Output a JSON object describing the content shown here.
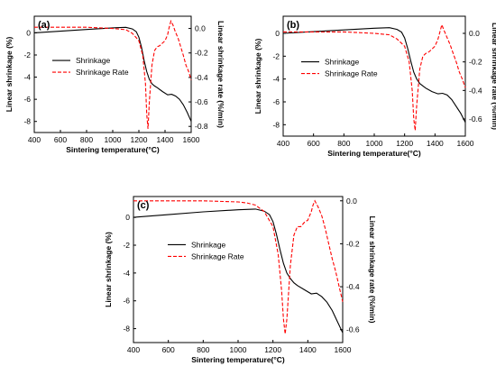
{
  "colors": {
    "shrinkage": "#000000",
    "shrinkage_rate": "#ff0000"
  },
  "chart_data": [
    {
      "panel_label": "(a)",
      "type": "line",
      "xlabel": "Sintering temperature(°C)",
      "ylabel_left": "Linear shrinkage (%)",
      "ylabel_right": "Linear shrinkage rate (%/min)",
      "xlim": [
        400,
        1600
      ],
      "ylim_left": [
        -9,
        1.5
      ],
      "ylim_right": [
        -0.85,
        0.1
      ],
      "xticks": [
        "400",
        "600",
        "800",
        "1000",
        "1200",
        "1400",
        "1600"
      ],
      "yticks_left": [
        "0",
        "-2",
        "-4",
        "-6",
        "-8"
      ],
      "yticks_right": [
        "0.0",
        "-0.2",
        "-0.4",
        "-0.6",
        "-0.8"
      ],
      "legend": {
        "placement": "center-left",
        "entries": [
          "Shrinkage",
          "Shrinkage Rate"
        ]
      },
      "series": [
        {
          "name": "Shrinkage",
          "axis": "left",
          "style": "solid",
          "x": [
            400,
            600,
            800,
            1000,
            1100,
            1150,
            1180,
            1200,
            1220,
            1240,
            1260,
            1280,
            1300,
            1320,
            1340,
            1380,
            1420,
            1450,
            1480,
            1510,
            1540,
            1570,
            1600
          ],
          "y": [
            0,
            0.15,
            0.3,
            0.45,
            0.5,
            0.35,
            0.1,
            -0.4,
            -1.3,
            -2.5,
            -3.5,
            -4.2,
            -4.6,
            -4.8,
            -4.95,
            -5.3,
            -5.6,
            -5.55,
            -5.7,
            -6.0,
            -6.5,
            -7.2,
            -8.0
          ]
        },
        {
          "name": "Shrinkage Rate",
          "axis": "right",
          "style": "dashed",
          "x": [
            400,
            800,
            1000,
            1100,
            1150,
            1200,
            1230,
            1250,
            1260,
            1270,
            1280,
            1300,
            1320,
            1340,
            1360,
            1380,
            1400,
            1420,
            1430,
            1445,
            1460,
            1480,
            1500,
            1520,
            1540,
            1560,
            1580,
            1600
          ],
          "y": [
            0.01,
            0.01,
            0.0,
            -0.01,
            -0.04,
            -0.1,
            -0.22,
            -0.45,
            -0.7,
            -0.82,
            -0.6,
            -0.3,
            -0.18,
            -0.15,
            -0.14,
            -0.12,
            -0.1,
            -0.05,
            0.0,
            0.06,
            0.03,
            -0.03,
            -0.08,
            -0.15,
            -0.22,
            -0.3,
            -0.35,
            -0.42
          ]
        }
      ]
    },
    {
      "panel_label": "(b)",
      "type": "line",
      "xlabel": "Sintering temperature(°C)",
      "ylabel_left": "Linear shrinkage (%)",
      "ylabel_right": "Linear shrinkage rate (%/min)",
      "xlim": [
        400,
        1600
      ],
      "ylim_left": [
        -9,
        1.5
      ],
      "ylim_right": [
        -0.72,
        0.12
      ],
      "xticks": [
        "400",
        "600",
        "800",
        "1000",
        "1200",
        "1400",
        "1600"
      ],
      "yticks_left": [
        "0",
        "-2",
        "-4",
        "-6",
        "-8"
      ],
      "yticks_right": [
        "0.0",
        "-0.2",
        "-0.4",
        "-0.6"
      ],
      "legend": {
        "placement": "center-left",
        "entries": [
          "Shrinkage",
          "Shrinkage Rate"
        ]
      },
      "series": [
        {
          "name": "Shrinkage",
          "axis": "left",
          "style": "solid",
          "x": [
            400,
            600,
            800,
            1000,
            1100,
            1150,
            1180,
            1200,
            1220,
            1240,
            1260,
            1280,
            1300,
            1320,
            1340,
            1380,
            1420,
            1450,
            1480,
            1510,
            1540,
            1570,
            1600
          ],
          "y": [
            0,
            0.15,
            0.3,
            0.45,
            0.5,
            0.35,
            0.1,
            -0.4,
            -1.3,
            -2.4,
            -3.4,
            -4.0,
            -4.4,
            -4.6,
            -4.8,
            -5.1,
            -5.3,
            -5.25,
            -5.4,
            -5.8,
            -6.4,
            -7.0,
            -7.8
          ]
        },
        {
          "name": "Shrinkage Rate",
          "axis": "right",
          "style": "dashed",
          "x": [
            400,
            800,
            1000,
            1100,
            1150,
            1200,
            1230,
            1250,
            1260,
            1270,
            1280,
            1300,
            1320,
            1340,
            1360,
            1380,
            1400,
            1420,
            1430,
            1445,
            1460,
            1480,
            1500,
            1520,
            1540,
            1560,
            1580,
            1600
          ],
          "y": [
            0.01,
            0.01,
            0.0,
            -0.01,
            -0.04,
            -0.09,
            -0.2,
            -0.4,
            -0.6,
            -0.68,
            -0.5,
            -0.25,
            -0.16,
            -0.14,
            -0.13,
            -0.11,
            -0.09,
            -0.04,
            0.0,
            0.06,
            0.02,
            -0.03,
            -0.08,
            -0.14,
            -0.2,
            -0.27,
            -0.32,
            -0.38
          ]
        }
      ]
    },
    {
      "panel_label": "(c)",
      "type": "line",
      "xlabel": "Sintering temperature(°C)",
      "ylabel_left": "Linear shrinkage (%)",
      "ylabel_right": "Linear shrinkage rate (%/min)",
      "xlim": [
        400,
        1600
      ],
      "ylim_left": [
        -9,
        1.5
      ],
      "ylim_right": [
        -0.66,
        0.02
      ],
      "xticks": [
        "400",
        "600",
        "800",
        "1000",
        "1200",
        "1400",
        "1600"
      ],
      "yticks_left": [
        "0",
        "-2",
        "-4",
        "-6",
        "-8"
      ],
      "yticks_right": [
        "0.0",
        "-0.2",
        "-0.4",
        "-0.6"
      ],
      "legend": {
        "placement": "center-left",
        "entries": [
          "Shrinkage",
          "Shrinkage Rate"
        ]
      },
      "series": [
        {
          "name": "Shrinkage",
          "axis": "left",
          "style": "solid",
          "x": [
            400,
            600,
            800,
            1000,
            1100,
            1150,
            1180,
            1200,
            1220,
            1240,
            1260,
            1280,
            1300,
            1320,
            1340,
            1380,
            1420,
            1450,
            1480,
            1510,
            1540,
            1570,
            1600
          ],
          "y": [
            0,
            0.2,
            0.4,
            0.55,
            0.6,
            0.45,
            0.2,
            -0.3,
            -1.2,
            -2.3,
            -3.3,
            -4.0,
            -4.4,
            -4.7,
            -4.9,
            -5.2,
            -5.5,
            -5.45,
            -5.7,
            -6.1,
            -6.7,
            -7.5,
            -8.3
          ]
        },
        {
          "name": "Shrinkage Rate",
          "axis": "right",
          "style": "dashed",
          "x": [
            400,
            800,
            1000,
            1050,
            1100,
            1150,
            1200,
            1230,
            1250,
            1260,
            1270,
            1280,
            1300,
            1320,
            1340,
            1360,
            1380,
            1400,
            1420,
            1430,
            1440,
            1460,
            1480,
            1500,
            1520,
            1540,
            1560,
            1580,
            1600
          ],
          "y": [
            0.0,
            0.0,
            -0.005,
            -0.01,
            -0.02,
            -0.05,
            -0.12,
            -0.25,
            -0.42,
            -0.55,
            -0.62,
            -0.55,
            -0.3,
            -0.16,
            -0.12,
            -0.12,
            -0.1,
            -0.09,
            -0.05,
            -0.02,
            0.0,
            -0.03,
            -0.07,
            -0.13,
            -0.2,
            -0.27,
            -0.33,
            -0.4,
            -0.47
          ]
        }
      ]
    }
  ]
}
